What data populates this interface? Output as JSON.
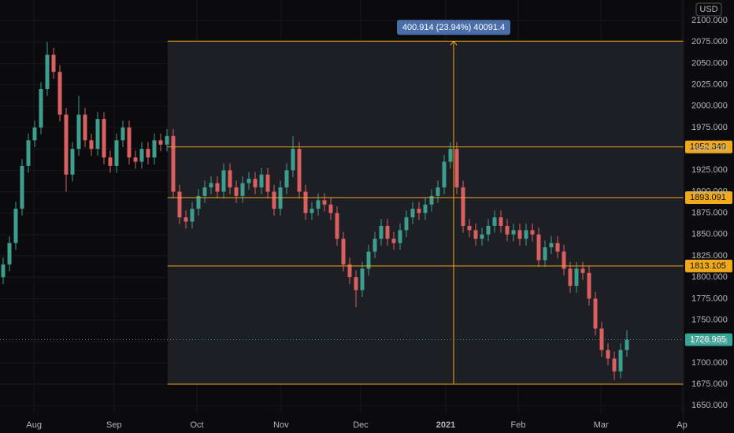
{
  "chart_data": {
    "type": "candlestick",
    "currency": "USD",
    "up_color": "#3d9e8f",
    "down_color": "#d9605f",
    "level_color": "#f0a81c",
    "last_color": "#35a594",
    "grid": true,
    "xlim": [
      -0.5,
      108
    ],
    "ylim": [
      1618,
      2124
    ],
    "xticks": [
      {
        "value": 4.9,
        "label": "Aug"
      },
      {
        "value": 17.6,
        "label": "Sep"
      },
      {
        "value": 30.75,
        "label": "Oct"
      },
      {
        "value": 44.1,
        "label": "Nov"
      },
      {
        "value": 56.75,
        "label": "Dec"
      },
      {
        "value": 70.25,
        "label": "2021"
      },
      {
        "value": 81.75,
        "label": "Feb"
      },
      {
        "value": 94.9,
        "label": "Mar"
      },
      {
        "value": 107.75,
        "label": "Ap"
      }
    ],
    "yticks": [
      {
        "value": 1650,
        "label": "1650.000"
      },
      {
        "value": 1675,
        "label": "1675.000"
      },
      {
        "value": 1700,
        "label": "1700.000"
      },
      {
        "value": 1725,
        "label": "1725.000"
      },
      {
        "value": 1750,
        "label": "1750.000"
      },
      {
        "value": 1775,
        "label": "1775.000"
      },
      {
        "value": 1800,
        "label": "1800.000"
      },
      {
        "value": 1825,
        "label": "1825.000"
      },
      {
        "value": 1850,
        "label": "1850.000"
      },
      {
        "value": 1875,
        "label": "1875.000"
      },
      {
        "value": 1900,
        "label": "1900.000"
      },
      {
        "value": 1925,
        "label": "1925.000"
      },
      {
        "value": 1950,
        "label": "1950.000"
      },
      {
        "value": 1975,
        "label": "1975.000"
      },
      {
        "value": 2000,
        "label": "2000.000"
      },
      {
        "value": 2025,
        "label": "2025.000"
      },
      {
        "value": 2050,
        "label": "2050.000"
      },
      {
        "value": 2075,
        "label": "2075.000"
      },
      {
        "value": 2100,
        "label": "2100.000"
      }
    ],
    "open": [
      1800,
      1815,
      1840,
      1880,
      1930,
      1960,
      1975,
      2020,
      2060,
      2040,
      1990,
      1920,
      1950,
      1990,
      1960,
      1950,
      1985,
      1940,
      1930,
      1960,
      1975,
      1940,
      1935,
      1950,
      1940,
      1960,
      1955,
      1965,
      1900,
      1870,
      1865,
      1880,
      1895,
      1905,
      1910,
      1900,
      1925,
      1905,
      1895,
      1910,
      1915,
      1905,
      1920,
      1900,
      1880,
      1905,
      1925,
      1950,
      1900,
      1875,
      1880,
      1890,
      1885,
      1875,
      1845,
      1815,
      1800,
      1785,
      1810,
      1830,
      1845,
      1860,
      1845,
      1840,
      1855,
      1870,
      1880,
      1875,
      1885,
      1895,
      1905,
      1935,
      1950,
      1905,
      1860,
      1855,
      1845,
      1850,
      1860,
      1870,
      1860,
      1850,
      1855,
      1845,
      1855,
      1850,
      1820,
      1835,
      1840,
      1830,
      1810,
      1790,
      1810,
      1805,
      1775,
      1740,
      1715,
      1705,
      1690,
      1715
    ],
    "high": [
      1823,
      1848,
      1888,
      1938,
      1968,
      1983,
      2028,
      2075,
      2068,
      2048,
      1998,
      1958,
      2012,
      1998,
      1968,
      1993,
      1993,
      1948,
      1968,
      1983,
      1983,
      1948,
      1958,
      1958,
      1968,
      1968,
      1973,
      1973,
      1908,
      1878,
      1888,
      1903,
      1913,
      1918,
      1918,
      1933,
      1933,
      1913,
      1918,
      1923,
      1923,
      1928,
      1928,
      1908,
      1913,
      1933,
      1965,
      1958,
      1908,
      1888,
      1898,
      1898,
      1893,
      1883,
      1853,
      1823,
      1808,
      1818,
      1838,
      1853,
      1868,
      1868,
      1853,
      1863,
      1878,
      1888,
      1888,
      1893,
      1903,
      1913,
      1943,
      1958,
      1958,
      1913,
      1868,
      1863,
      1858,
      1868,
      1878,
      1878,
      1868,
      1863,
      1863,
      1863,
      1863,
      1858,
      1843,
      1848,
      1848,
      1838,
      1818,
      1818,
      1818,
      1813,
      1783,
      1748,
      1723,
      1713,
      1723,
      1738
    ],
    "low": [
      1792,
      1807,
      1832,
      1872,
      1922,
      1952,
      1967,
      2012,
      2032,
      1982,
      1900,
      1912,
      1942,
      1952,
      1942,
      1942,
      1932,
      1922,
      1922,
      1952,
      1932,
      1927,
      1927,
      1932,
      1932,
      1947,
      1947,
      1892,
      1862,
      1857,
      1857,
      1872,
      1887,
      1897,
      1892,
      1892,
      1897,
      1887,
      1887,
      1902,
      1897,
      1897,
      1892,
      1872,
      1872,
      1897,
      1917,
      1892,
      1867,
      1867,
      1872,
      1877,
      1867,
      1837,
      1807,
      1792,
      1765,
      1777,
      1802,
      1822,
      1837,
      1837,
      1832,
      1832,
      1847,
      1862,
      1867,
      1867,
      1877,
      1887,
      1897,
      1927,
      1897,
      1852,
      1847,
      1837,
      1837,
      1842,
      1852,
      1852,
      1842,
      1842,
      1837,
      1837,
      1842,
      1812,
      1812,
      1827,
      1822,
      1802,
      1782,
      1782,
      1797,
      1767,
      1732,
      1707,
      1697,
      1680,
      1682,
      1707
    ],
    "close": [
      1815,
      1840,
      1880,
      1930,
      1960,
      1975,
      2020,
      2060,
      2040,
      1990,
      1920,
      1950,
      1990,
      1960,
      1950,
      1985,
      1940,
      1930,
      1960,
      1975,
      1940,
      1935,
      1950,
      1940,
      1960,
      1955,
      1965,
      1900,
      1870,
      1865,
      1880,
      1895,
      1905,
      1910,
      1900,
      1925,
      1905,
      1895,
      1910,
      1915,
      1905,
      1920,
      1900,
      1880,
      1905,
      1925,
      1950,
      1900,
      1875,
      1880,
      1890,
      1885,
      1875,
      1845,
      1815,
      1800,
      1785,
      1810,
      1830,
      1845,
      1860,
      1845,
      1840,
      1855,
      1870,
      1880,
      1875,
      1885,
      1895,
      1905,
      1935,
      1950,
      1905,
      1860,
      1855,
      1845,
      1850,
      1860,
      1870,
      1860,
      1850,
      1855,
      1845,
      1855,
      1850,
      1820,
      1835,
      1840,
      1830,
      1810,
      1790,
      1810,
      1805,
      1775,
      1740,
      1715,
      1705,
      1690,
      1715,
      1727
    ],
    "levels": [
      {
        "value": 1952.34,
        "label": "1952.340"
      },
      {
        "value": 1893.091,
        "label": "1893.091"
      },
      {
        "value": 1813.105,
        "label": "1813.105"
      }
    ],
    "last_price": {
      "value": 1726.965,
      "label": "1726.965"
    },
    "measure": {
      "top": 2075.914,
      "bottom": 1675,
      "start": 26.1,
      "end": 108,
      "at": 71.5,
      "label": "400.914 (23.94%) 40091.4"
    }
  }
}
